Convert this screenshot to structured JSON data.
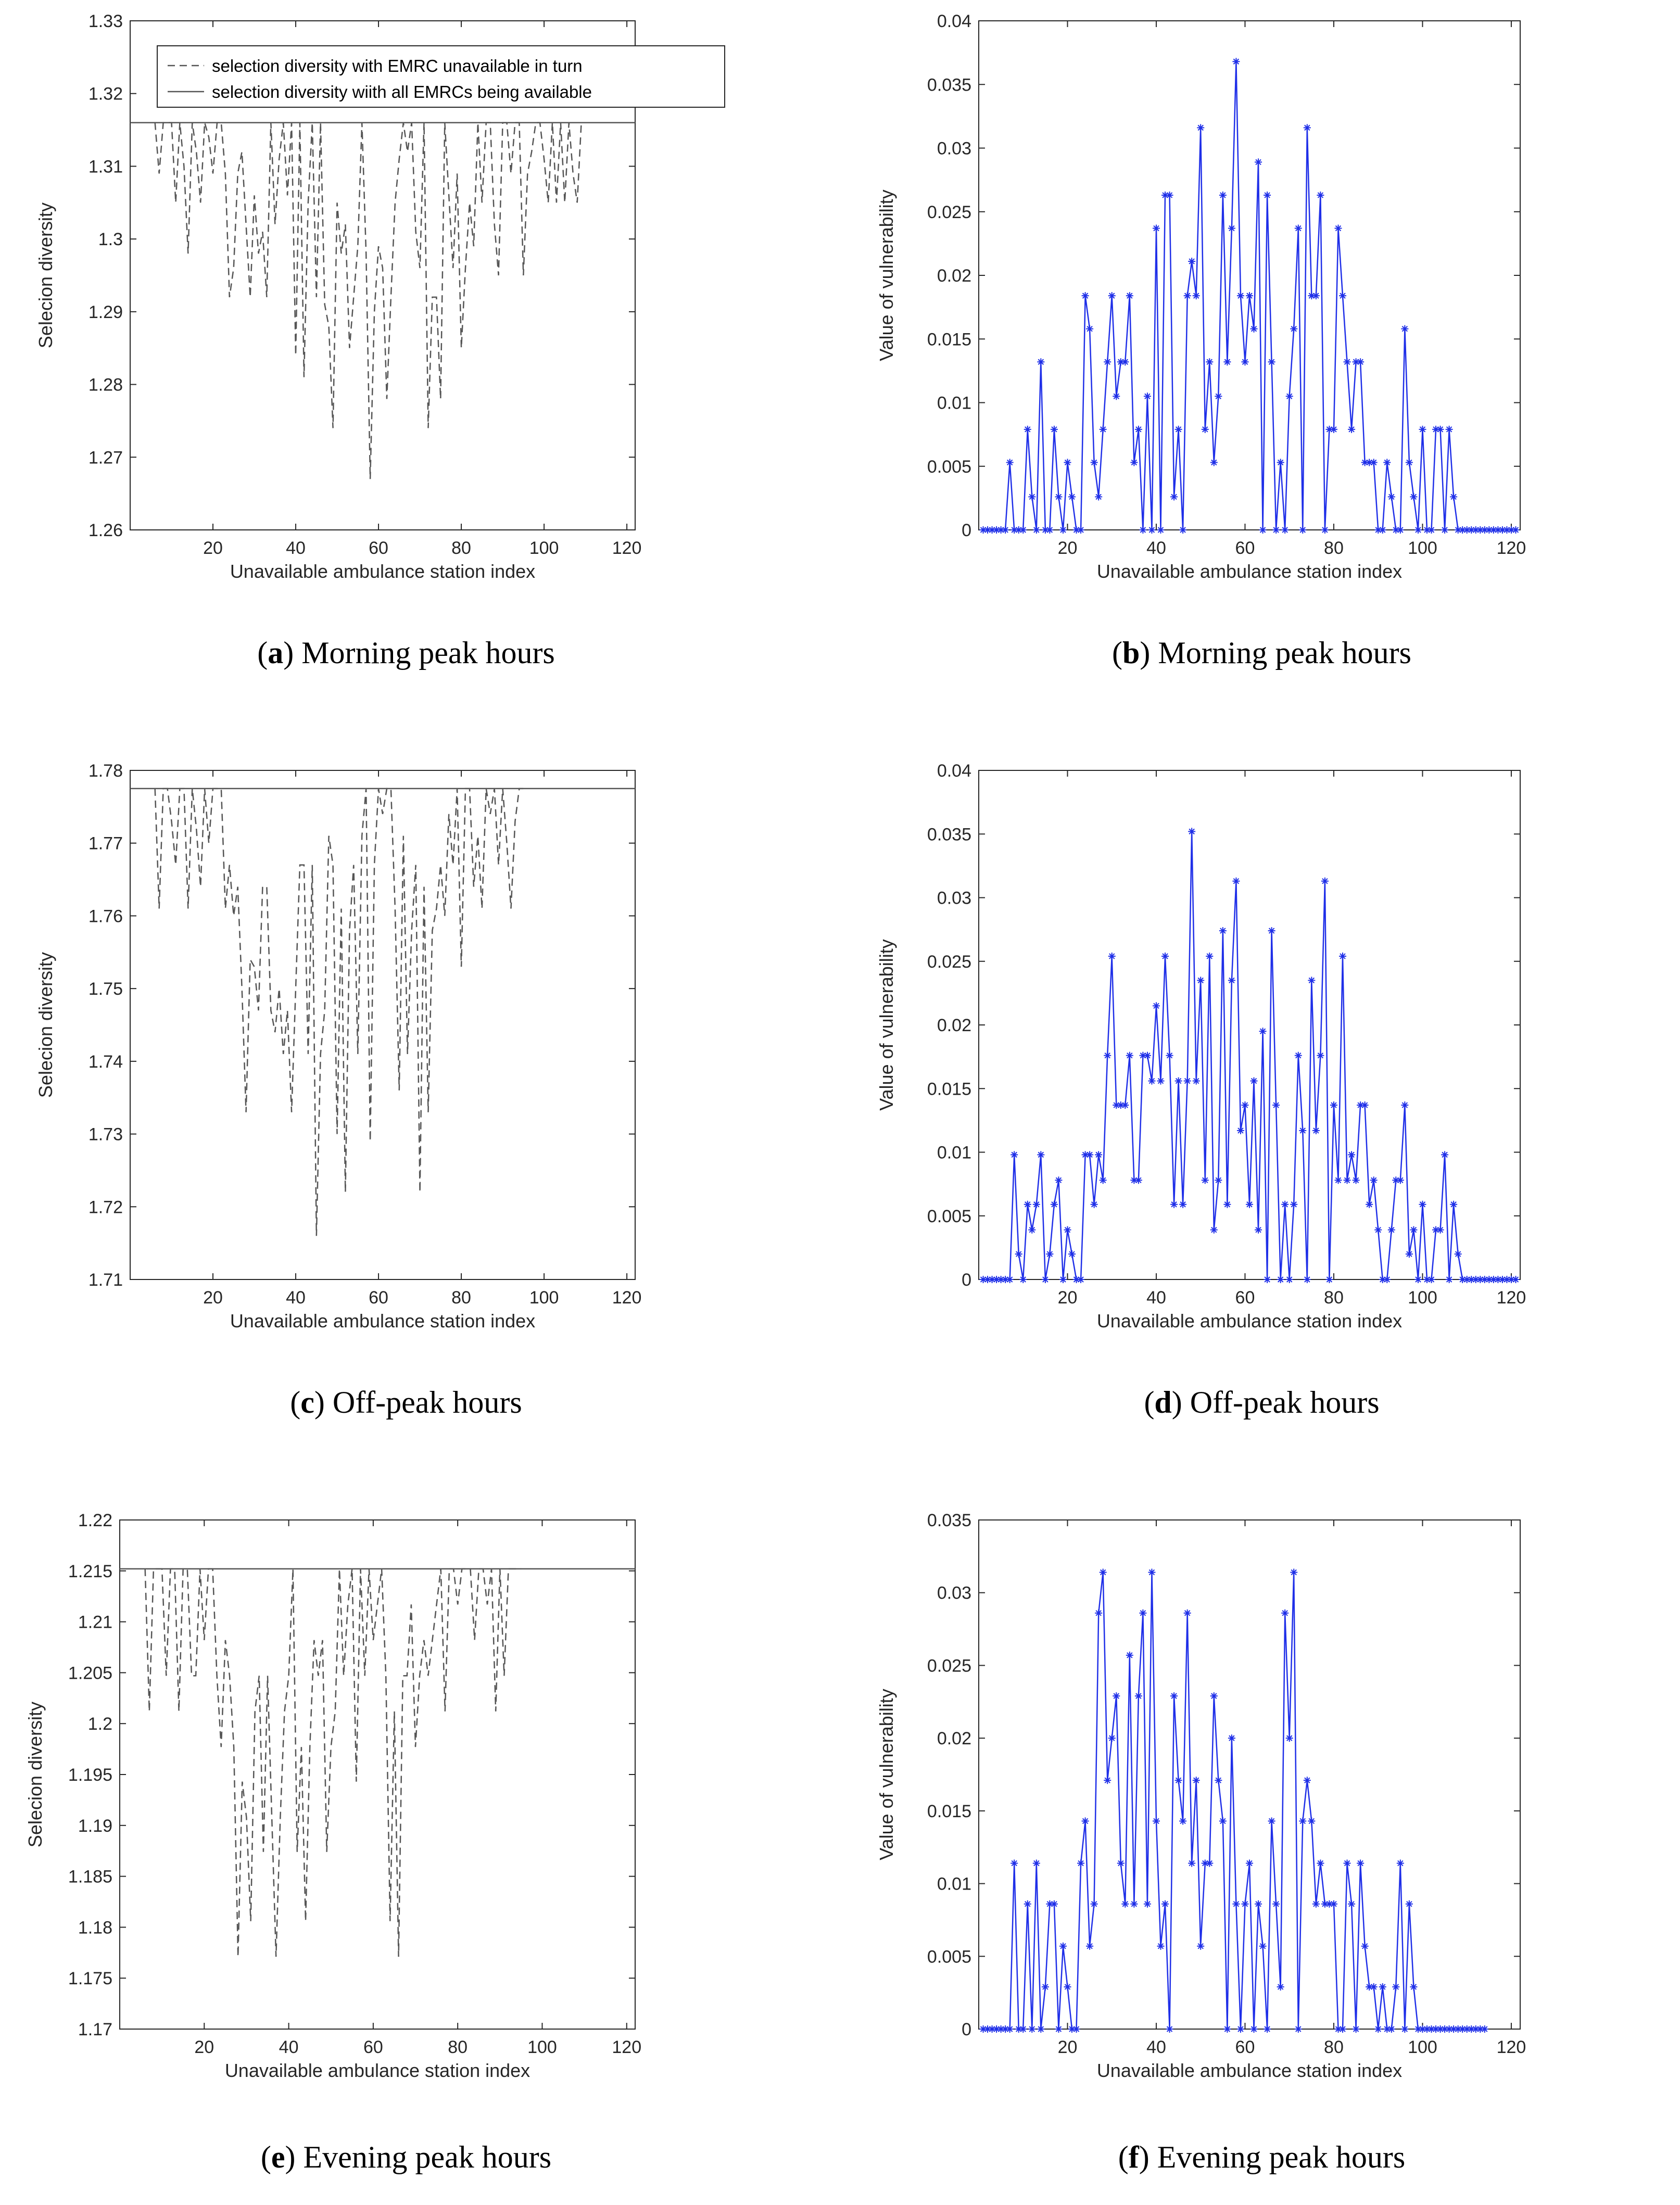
{
  "captions": [
    {
      "letter": "a",
      "text": "Morning peak hours"
    },
    {
      "letter": "b",
      "text": "Morning peak hours"
    },
    {
      "letter": "c",
      "text": "Off-peak hours"
    },
    {
      "letter": "d",
      "text": "Off-peak hours"
    },
    {
      "letter": "e",
      "text": "Evening peak hours"
    },
    {
      "letter": "f",
      "text": "Evening peak hours"
    }
  ],
  "colors": {
    "diversity": "#555555",
    "baseline": "#555555",
    "vulnerability": "#1f2fe8"
  },
  "legend": {
    "dashed": "selection diversity with EMRC unavailable in turn",
    "solid": "selection diversity wiith all EMRCs being available"
  },
  "chart_data": [
    {
      "id": "a",
      "type": "line",
      "xlabel": "Unavailable ambulance station index",
      "ylabel": "Selecion diversity",
      "xlim": [
        0,
        122
      ],
      "ylim": [
        1.26,
        1.33
      ],
      "xticks": [
        20,
        40,
        60,
        80,
        100,
        120
      ],
      "yticks": [
        "1.26",
        "1.27",
        "1.28",
        "1.29",
        "1.3",
        "1.31",
        "1.32",
        "1.33"
      ],
      "baseline": 1.316,
      "x_start": 6,
      "values": [
        1.316,
        1.309,
        1.316,
        1.316,
        1.316,
        1.305,
        1.316,
        1.31,
        1.298,
        1.316,
        1.312,
        1.305,
        1.316,
        1.314,
        1.309,
        1.316,
        1.316,
        1.309,
        1.292,
        1.296,
        1.309,
        1.312,
        1.302,
        1.292,
        1.306,
        1.298,
        1.301,
        1.292,
        1.316,
        1.302,
        1.311,
        1.316,
        1.306,
        1.316,
        1.284,
        1.316,
        1.281,
        1.305,
        1.316,
        1.292,
        1.316,
        1.291,
        1.288,
        1.274,
        1.305,
        1.298,
        1.302,
        1.285,
        1.292,
        1.299,
        1.316,
        1.298,
        1.267,
        1.29,
        1.299,
        1.296,
        1.278,
        1.292,
        1.305,
        1.311,
        1.316,
        1.312,
        1.316,
        1.301,
        1.296,
        1.316,
        1.274,
        1.292,
        1.292,
        1.278,
        1.316,
        1.306,
        1.296,
        1.309,
        1.285,
        1.296,
        1.305,
        1.299,
        1.316,
        1.305,
        1.316,
        1.316,
        1.302,
        1.295,
        1.316,
        1.316,
        1.309,
        1.316,
        1.316,
        1.295,
        1.309,
        1.312,
        1.316,
        1.316,
        1.311,
        1.305,
        1.316,
        1.305,
        1.316,
        1.305,
        1.316,
        1.309,
        1.305,
        1.316
      ],
      "legend_position": "top-left"
    },
    {
      "id": "b",
      "type": "line",
      "xlabel": "Unavailable ambulance station index",
      "ylabel": "Value of vulnerability",
      "xlim": [
        0,
        122
      ],
      "ylim": [
        0,
        0.04
      ],
      "xticks": [
        20,
        40,
        60,
        80,
        100,
        120
      ],
      "yticks": [
        "0",
        "0.005",
        "0.01",
        "0.015",
        "0.02",
        "0.025",
        "0.03",
        "0.035",
        "0.04"
      ],
      "x_start": 1,
      "values": [
        0,
        0,
        0,
        0,
        0,
        0,
        0.0053,
        0,
        0,
        0,
        0.0079,
        0.0026,
        0,
        0.0132,
        0,
        0,
        0.0079,
        0.0026,
        0,
        0.0053,
        0.0026,
        0,
        0,
        0.0184,
        0.0158,
        0.0053,
        0.0026,
        0.0079,
        0.0132,
        0.0184,
        0.0105,
        0.0132,
        0.0132,
        0.0184,
        0.0053,
        0.0079,
        0,
        0.0105,
        0,
        0.0237,
        0,
        0.0263,
        0.0263,
        0.0026,
        0.0079,
        0,
        0.0184,
        0.0211,
        0.0184,
        0.0316,
        0.0079,
        0.0132,
        0.0053,
        0.0105,
        0.0263,
        0.0132,
        0.0237,
        0.0368,
        0.0184,
        0.0132,
        0.0184,
        0.0158,
        0.0289,
        0,
        0.0263,
        0.0132,
        0,
        0.0053,
        0,
        0.0105,
        0.0158,
        0.0237,
        0,
        0.0316,
        0.0184,
        0.0184,
        0.0263,
        0,
        0.0079,
        0.0079,
        0.0237,
        0.0184,
        0.0132,
        0.0079,
        0.0132,
        0.0132,
        0.0053,
        0.0053,
        0.0053,
        0,
        0,
        0.0053,
        0.0026,
        0,
        0,
        0.0158,
        0.0053,
        0.0026,
        0,
        0.0079,
        0,
        0,
        0.0079,
        0.0079,
        0,
        0.0079,
        0.0026,
        0,
        0,
        0,
        0,
        0,
        0,
        0,
        0,
        0,
        0,
        0,
        0,
        0,
        0
      ]
    },
    {
      "id": "c",
      "type": "line",
      "xlabel": "Unavailable ambulance station index",
      "ylabel": "Selecion diversity",
      "xlim": [
        0,
        122
      ],
      "ylim": [
        1.71,
        1.78
      ],
      "xticks": [
        20,
        40,
        60,
        80,
        100,
        120
      ],
      "yticks": [
        "1.71",
        "1.72",
        "1.73",
        "1.74",
        "1.75",
        "1.76",
        "1.77",
        "1.78"
      ],
      "baseline": 1.7775,
      "x_start": 6,
      "values": [
        1.7775,
        1.761,
        1.7775,
        1.7775,
        1.773,
        1.767,
        1.7775,
        1.7775,
        1.761,
        1.7775,
        1.772,
        1.764,
        1.7775,
        1.77,
        1.7775,
        1.7775,
        1.7775,
        1.761,
        1.767,
        1.76,
        1.764,
        1.75,
        1.733,
        1.754,
        1.753,
        1.747,
        1.764,
        1.764,
        1.747,
        1.744,
        1.75,
        1.741,
        1.747,
        1.733,
        1.75,
        1.767,
        1.767,
        1.741,
        1.767,
        1.716,
        1.741,
        1.747,
        1.771,
        1.767,
        1.73,
        1.761,
        1.722,
        1.758,
        1.767,
        1.741,
        1.771,
        1.7775,
        1.729,
        1.767,
        1.7775,
        1.774,
        1.7775,
        1.7775,
        1.761,
        1.736,
        1.771,
        1.741,
        1.758,
        1.767,
        1.722,
        1.764,
        1.733,
        1.758,
        1.761,
        1.767,
        1.76,
        1.774,
        1.767,
        1.7775,
        1.753,
        1.7775,
        1.7775,
        1.764,
        1.771,
        1.761,
        1.7775,
        1.774,
        1.7775,
        1.767,
        1.7775,
        1.77,
        1.761,
        1.773,
        1.7775,
        1.7775
      ],
      "legend_position": "none"
    },
    {
      "id": "d",
      "type": "line",
      "xlabel": "Unavailable ambulance station index",
      "ylabel": "Value of vulnerability",
      "xlim": [
        0,
        122
      ],
      "ylim": [
        0,
        0.04
      ],
      "xticks": [
        20,
        40,
        60,
        80,
        100,
        120
      ],
      "yticks": [
        "0",
        "0.005",
        "0.01",
        "0.015",
        "0.02",
        "0.025",
        "0.03",
        "0.035",
        "0.04"
      ],
      "x_start": 1,
      "values": [
        0,
        0,
        0,
        0,
        0,
        0,
        0,
        0.0098,
        0.002,
        0,
        0.0059,
        0.0039,
        0.0059,
        0.0098,
        0,
        0.002,
        0.0059,
        0.0078,
        0,
        0.0039,
        0.002,
        0,
        0,
        0.0098,
        0.0098,
        0.0059,
        0.0098,
        0.0078,
        0.0176,
        0.0254,
        0.0137,
        0.0137,
        0.0137,
        0.0176,
        0.0078,
        0.0078,
        0.0176,
        0.0176,
        0.0156,
        0.0215,
        0.0156,
        0.0254,
        0.0176,
        0.0059,
        0.0156,
        0.0059,
        0.0156,
        0.0352,
        0.0156,
        0.0235,
        0.0078,
        0.0254,
        0.0039,
        0.0078,
        0.0274,
        0.0059,
        0.0235,
        0.0313,
        0.0117,
        0.0137,
        0.0059,
        0.0156,
        0.0039,
        0.0195,
        0,
        0.0274,
        0.0137,
        0,
        0.0059,
        0,
        0.0059,
        0.0176,
        0.0117,
        0,
        0.0235,
        0.0117,
        0.0176,
        0.0313,
        0,
        0.0137,
        0.0078,
        0.0254,
        0.0078,
        0.0098,
        0.0078,
        0.0137,
        0.0137,
        0.0059,
        0.0078,
        0.0039,
        0,
        0,
        0.0039,
        0.0078,
        0.0078,
        0.0137,
        0.002,
        0.0039,
        0,
        0.0059,
        0,
        0,
        0.0039,
        0.0039,
        0.0098,
        0,
        0.0059,
        0.002,
        0,
        0,
        0,
        0,
        0,
        0,
        0,
        0,
        0,
        0,
        0,
        0,
        0
      ]
    },
    {
      "id": "e",
      "type": "line",
      "xlabel": "Unavailable ambulance station index",
      "ylabel": "Selecion diversity",
      "xlim": [
        0,
        122
      ],
      "ylim": [
        1.17,
        1.22
      ],
      "xticks": [
        20,
        40,
        60,
        80,
        100,
        120
      ],
      "yticks": [
        "1.17",
        "1.175",
        "1.18",
        "1.185",
        "1.19",
        "1.195",
        "1.2",
        "1.205",
        "1.21",
        "1.215",
        "1.22"
      ],
      "baseline": 1.2152,
      "x_start": 6,
      "values": [
        1.2152,
        1.2012,
        1.2152,
        1.2152,
        1.2152,
        1.2047,
        1.2152,
        1.2152,
        1.2012,
        1.2152,
        1.2152,
        1.2047,
        1.2047,
        1.2152,
        1.2082,
        1.2152,
        1.2152,
        1.2047,
        1.1977,
        1.2082,
        1.2047,
        1.1977,
        1.1771,
        1.1943,
        1.1908,
        1.1806,
        1.2012,
        1.2047,
        1.1874,
        1.2047,
        1.1908,
        1.1771,
        1.1908,
        1.2012,
        1.2047,
        1.2152,
        1.1874,
        1.1977,
        1.1806,
        1.1977,
        1.2082,
        1.2047,
        1.2082,
        1.1874,
        1.1977,
        1.2012,
        1.2152,
        1.2047,
        1.2117,
        1.2152,
        1.1943,
        1.2152,
        1.2047,
        1.2152,
        1.2082,
        1.2117,
        1.2152,
        1.2047,
        1.1806,
        1.2012,
        1.1771,
        1.2047,
        1.2047,
        1.2117,
        1.1977,
        1.2047,
        1.2082,
        1.2047,
        1.2082,
        1.2117,
        1.2152,
        1.2012,
        1.2152,
        1.2152,
        1.2117,
        1.2152,
        1.2152,
        1.2152,
        1.2082,
        1.2152,
        1.2152,
        1.2117,
        1.2152,
        1.2012,
        1.2152,
        1.2047,
        1.2152,
        1.2152,
        1.2152,
        1.2152
      ],
      "legend_position": "none"
    },
    {
      "id": "f",
      "type": "line",
      "xlabel": "Unavailable ambulance station index",
      "ylabel": "Value of vulnerability",
      "xlim": [
        0,
        122
      ],
      "ylim": [
        0,
        0.035
      ],
      "xticks": [
        20,
        40,
        60,
        80,
        100,
        120
      ],
      "yticks": [
        "0",
        "0.005",
        "0.01",
        "0.015",
        "0.02",
        "0.025",
        "0.03",
        "0.035"
      ],
      "x_start": 1,
      "values": [
        0,
        0,
        0,
        0,
        0,
        0,
        0,
        0.0114,
        0,
        0,
        0.0086,
        0,
        0.0114,
        0,
        0.0029,
        0.0086,
        0.0086,
        0,
        0.0057,
        0.0029,
        0,
        0,
        0.0114,
        0.0143,
        0.0057,
        0.0086,
        0.0286,
        0.0314,
        0.0171,
        0.02,
        0.0229,
        0.0114,
        0.0086,
        0.0257,
        0.0086,
        0.0229,
        0.0286,
        0.0086,
        0.0314,
        0.0143,
        0.0057,
        0.0086,
        0,
        0.0229,
        0.0171,
        0.0143,
        0.0286,
        0.0114,
        0.0171,
        0.0057,
        0.0114,
        0.0114,
        0.0229,
        0.0171,
        0.0143,
        0,
        0.02,
        0.0086,
        0,
        0.0086,
        0.0114,
        0,
        0.0086,
        0.0057,
        0,
        0.0143,
        0.0086,
        0.0029,
        0.0286,
        0.02,
        0.0314,
        0,
        0.0143,
        0.0171,
        0.0143,
        0.0086,
        0.0114,
        0.0086,
        0.0086,
        0.0086,
        0,
        0,
        0.0114,
        0.0086,
        0,
        0.0114,
        0.0057,
        0.0029,
        0.0029,
        0,
        0.0029,
        0,
        0,
        0.0029,
        0.0114,
        0,
        0.0086,
        0.0029,
        0,
        0,
        0,
        0,
        0,
        0,
        0,
        0,
        0,
        0,
        0,
        0,
        0,
        0,
        0,
        0
      ]
    }
  ]
}
